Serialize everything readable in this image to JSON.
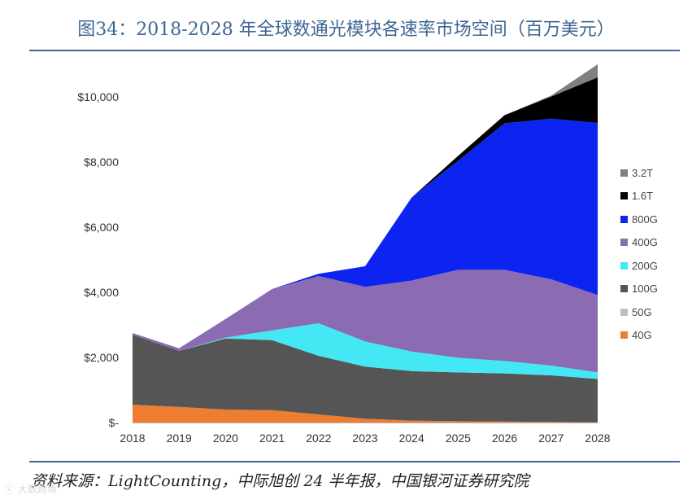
{
  "title": "图34：2018-2028 年全球数通光模块各速率市场空间（百万美元）",
  "source": "资料来源：LightCounting，中际旭创 24 半年报，中国银河证券研究院",
  "watermark": "ⓒ 大数跨境",
  "chart_data": {
    "type": "area",
    "stacked": true,
    "title": "",
    "xlabel": "",
    "ylabel": "",
    "categories": [
      "2018",
      "2019",
      "2020",
      "2021",
      "2022",
      "2023",
      "2024",
      "2025",
      "2026",
      "2027",
      "2028"
    ],
    "ylim": [
      0,
      11000
    ],
    "yticks": [
      0,
      2000,
      4000,
      6000,
      8000,
      10000
    ],
    "ytick_labels": [
      "$-",
      "$2,000",
      "$4,000",
      "$6,000",
      "$8,000",
      "$10,000"
    ],
    "legend_position": "right",
    "series": [
      {
        "name": "40G",
        "color": "#ed7d31",
        "values": [
          550,
          480,
          400,
          380,
          250,
          120,
          60,
          40,
          30,
          20,
          10
        ]
      },
      {
        "name": "50G",
        "color": "#bfbfbf",
        "values": [
          0,
          0,
          0,
          0,
          0,
          0,
          0,
          0,
          0,
          0,
          0
        ]
      },
      {
        "name": "100G",
        "color": "#555555",
        "values": [
          2150,
          1720,
          2180,
          2150,
          1800,
          1600,
          1520,
          1500,
          1480,
          1430,
          1330
        ]
      },
      {
        "name": "200G",
        "color": "#44e8f4",
        "values": [
          0,
          0,
          30,
          300,
          1000,
          770,
          600,
          450,
          380,
          300,
          200
        ]
      },
      {
        "name": "400G",
        "color": "#8b6bb1",
        "values": [
          50,
          80,
          570,
          1270,
          1450,
          1680,
          2180,
          2700,
          2800,
          2650,
          2380
        ]
      },
      {
        "name": "800G",
        "color": "#0d24f0",
        "values": [
          0,
          0,
          0,
          0,
          70,
          630,
          2550,
          3350,
          4500,
          4930,
          5280
        ]
      },
      {
        "name": "1.6T",
        "color": "#000000",
        "values": [
          0,
          0,
          0,
          0,
          0,
          0,
          0,
          150,
          250,
          680,
          1400
        ]
      },
      {
        "name": "3.2T",
        "color": "#808080",
        "values": [
          0,
          0,
          0,
          0,
          0,
          0,
          0,
          0,
          0,
          30,
          400
        ]
      }
    ],
    "legend_order": [
      "3.2T",
      "1.6T",
      "800G",
      "400G",
      "200G",
      "100G",
      "50G",
      "40G"
    ]
  }
}
